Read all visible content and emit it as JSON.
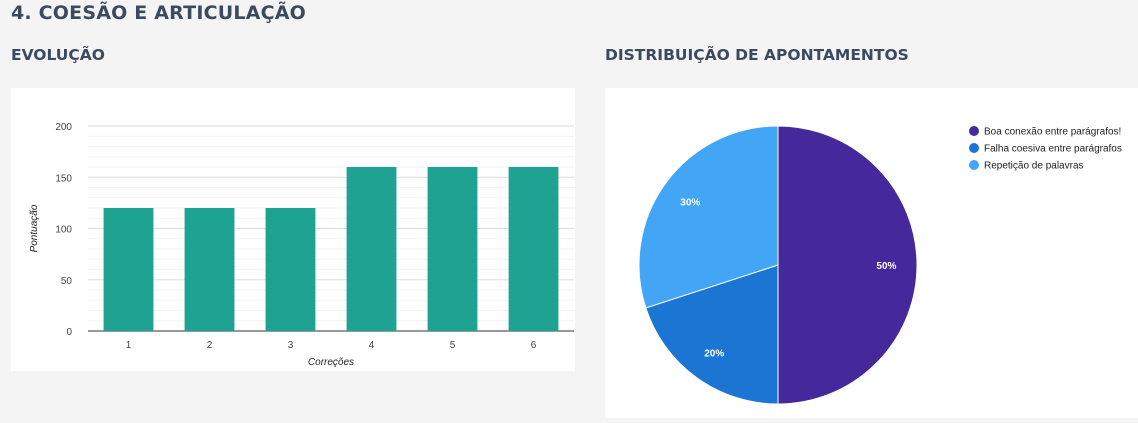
{
  "section": {
    "title": "4. COESÃO E ARTICULAÇÃO"
  },
  "evolution": {
    "title": "EVOLUÇÃO"
  },
  "distribution": {
    "title": "DISTRIBUIÇÃO DE APONTAMENTOS"
  },
  "chart_data": [
    {
      "type": "bar",
      "categories": [
        "1",
        "2",
        "3",
        "4",
        "5",
        "6"
      ],
      "values": [
        120,
        120,
        120,
        160,
        160,
        160
      ],
      "title": "",
      "xlabel": "Correções",
      "ylabel": "Pontuação",
      "ylim": [
        0,
        200
      ],
      "yticks": [
        0,
        50,
        100,
        150,
        200
      ],
      "grid": true,
      "color": "#1ea393"
    },
    {
      "type": "pie",
      "labels": [
        "Boa conexão entre parágrafos!",
        "Falha coesiva entre parágrafos",
        "Repetição de palavras"
      ],
      "values": [
        50,
        20,
        30
      ],
      "value_labels": [
        "50%",
        "20%",
        "30%"
      ],
      "colors": [
        "#45289b",
        "#1a76d2",
        "#42a5f5"
      ],
      "legend": "right"
    }
  ]
}
